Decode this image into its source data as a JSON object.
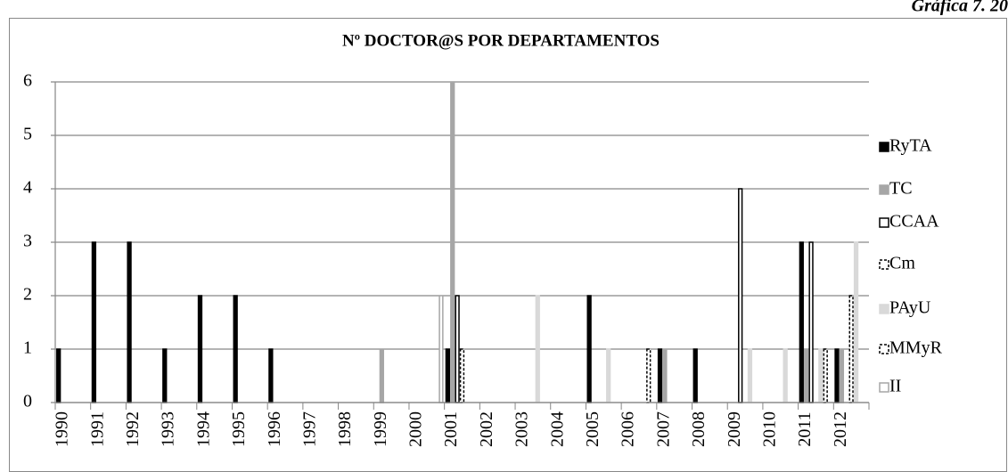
{
  "chart_data": {
    "type": "bar",
    "title": "Nº DOCTOR@S POR DEPARTAMENTOS",
    "annotation": "Gráfica 7. 20",
    "categories": [
      "1990",
      "1991",
      "1992",
      "1993",
      "1994",
      "1995",
      "1996",
      "1997",
      "1998",
      "1999",
      "2000",
      "2001",
      "2002",
      "2003",
      "2004",
      "2005",
      "2006",
      "2007",
      "2008",
      "2009",
      "2010",
      "2011",
      "2012"
    ],
    "series": [
      {
        "name": "RyTA",
        "color": "#000000",
        "edgecolor": "#000000",
        "dashed": false,
        "values": [
          1,
          3,
          3,
          1,
          2,
          2,
          1,
          0,
          0,
          0,
          0,
          1,
          0,
          0,
          0,
          2,
          0,
          1,
          1,
          0,
          0,
          3,
          1
        ]
      },
      {
        "name": "TC",
        "color": "#a6a6a6",
        "edgecolor": "#a6a6a6",
        "dashed": false,
        "values": [
          0,
          0,
          0,
          0,
          0,
          0,
          0,
          0,
          0,
          1,
          0,
          6,
          0,
          0,
          0,
          0,
          0,
          1,
          0,
          0,
          0,
          1,
          1
        ]
      },
      {
        "name": "CCAA",
        "color": "#ffffff",
        "edgecolor": "#000000",
        "dashed": false,
        "values": [
          0,
          0,
          0,
          0,
          0,
          0,
          0,
          0,
          0,
          0,
          0,
          2,
          0,
          0,
          0,
          0,
          0,
          0,
          0,
          4,
          0,
          3,
          0
        ]
      },
      {
        "name": "Cm",
        "color": "#ffffff",
        "edgecolor": "#000000",
        "dashed": true,
        "values": [
          0,
          0,
          0,
          0,
          0,
          0,
          0,
          0,
          0,
          0,
          0,
          1,
          0,
          0,
          0,
          0,
          0,
          0,
          0,
          0,
          0,
          0,
          2
        ]
      },
      {
        "name": "PAyU",
        "color": "#d9d9d9",
        "edgecolor": "#d9d9d9",
        "dashed": false,
        "values": [
          0,
          0,
          0,
          0,
          0,
          0,
          0,
          0,
          0,
          0,
          0,
          0,
          0,
          2,
          0,
          1,
          0,
          0,
          0,
          1,
          1,
          1,
          3
        ]
      },
      {
        "name": "MMyR",
        "color": "#ffffff",
        "edgecolor": "#000000",
        "dashed": true,
        "values": [
          0,
          0,
          0,
          0,
          0,
          0,
          0,
          0,
          0,
          0,
          0,
          0,
          0,
          0,
          0,
          0,
          1,
          0,
          0,
          0,
          0,
          1,
          0
        ]
      },
      {
        "name": "II",
        "color": "#ffffff",
        "edgecolor": "#a6a6a6",
        "dashed": false,
        "values": [
          0,
          0,
          0,
          0,
          0,
          0,
          0,
          0,
          0,
          0,
          2,
          0,
          0,
          0,
          0,
          0,
          0,
          0,
          0,
          0,
          0,
          0,
          0
        ]
      }
    ],
    "ylim": [
      0,
      6
    ],
    "yticks": [
      0,
      1,
      2,
      3,
      4,
      5,
      6
    ],
    "grid": true,
    "legend": "right"
  }
}
